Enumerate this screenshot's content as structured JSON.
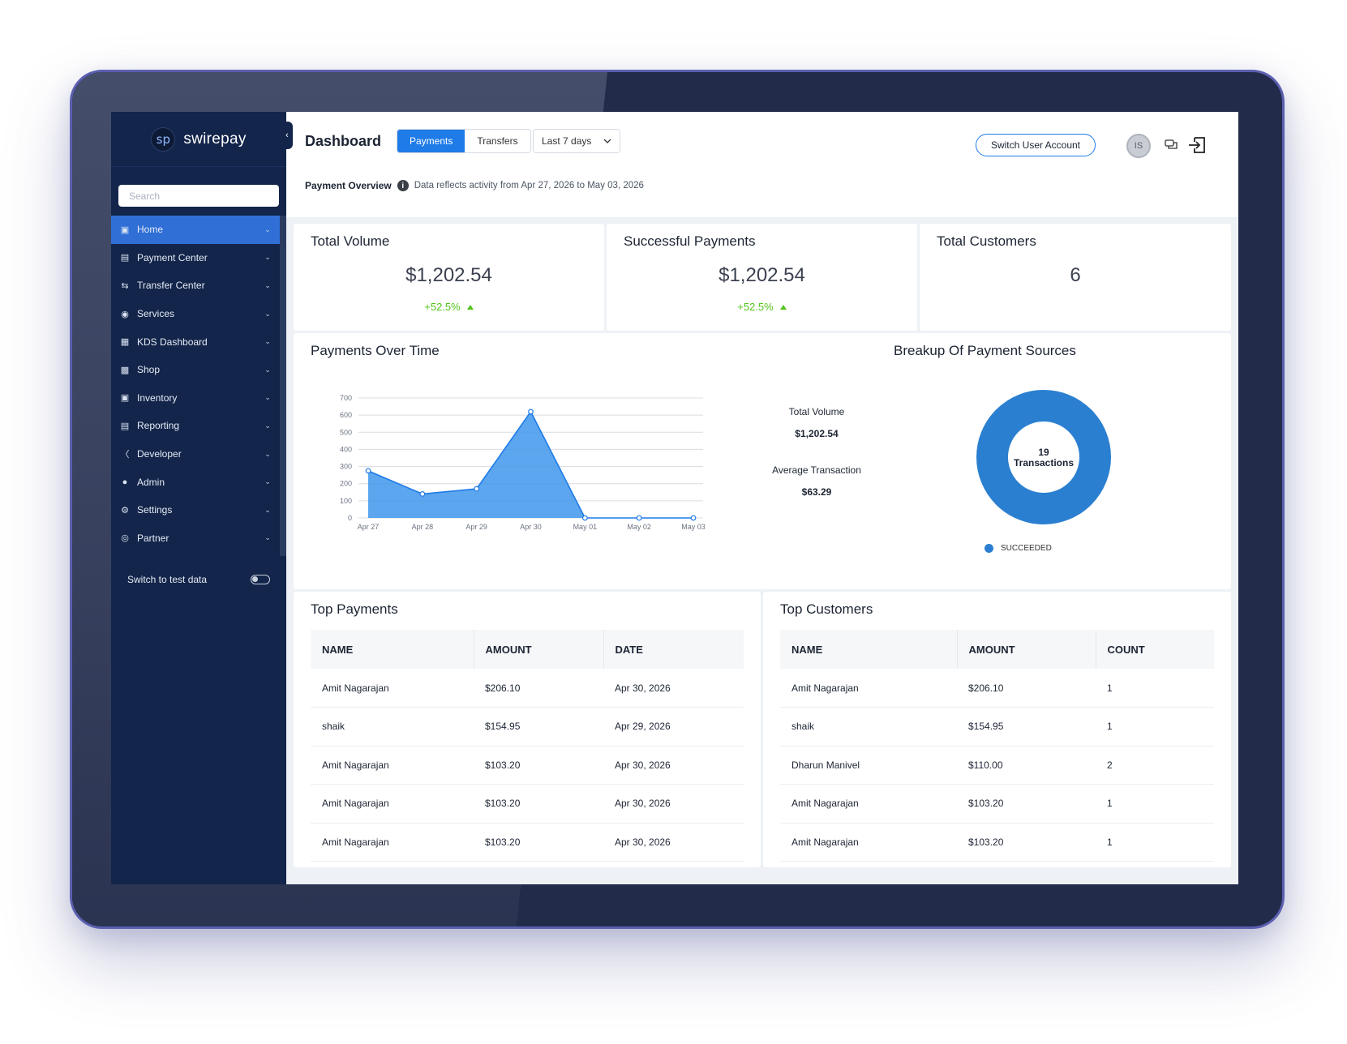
{
  "brand": {
    "logo_mark": "sp",
    "name": "swirepay"
  },
  "sidebar": {
    "search_placeholder": "Search",
    "items": [
      {
        "label": "Home",
        "icon": "home-icon",
        "active": true
      },
      {
        "label": "Payment Center",
        "icon": "payment-icon"
      },
      {
        "label": "Transfer Center",
        "icon": "transfer-icon"
      },
      {
        "label": "Services",
        "icon": "services-icon"
      },
      {
        "label": "KDS Dashboard",
        "icon": "kds-icon"
      },
      {
        "label": "Shop",
        "icon": "shop-icon"
      },
      {
        "label": "Inventory",
        "icon": "inventory-icon"
      },
      {
        "label": "Reporting",
        "icon": "reporting-icon"
      },
      {
        "label": "Developer",
        "icon": "developer-icon"
      },
      {
        "label": "Admin",
        "icon": "admin-icon"
      },
      {
        "label": "Settings",
        "icon": "settings-icon"
      },
      {
        "label": "Partner",
        "icon": "partner-icon"
      }
    ],
    "test_data_label": "Switch to test data"
  },
  "header": {
    "title": "Dashboard",
    "tabs": [
      "Payments",
      "Transfers"
    ],
    "active_tab": "Payments",
    "range": "Last 7 days",
    "switch_user": "Switch User Account",
    "avatar_initials": "IS",
    "overview_label": "Payment Overview",
    "overview_note": "Data reflects activity from Apr 27, 2026 to May 03, 2026"
  },
  "stats": [
    {
      "title": "Total Volume",
      "value": "$1,202.54",
      "change": "+52.5%"
    },
    {
      "title": "Successful Payments",
      "value": "$1,202.54",
      "change": "+52.5%"
    },
    {
      "title": "Total Customers",
      "value": "6",
      "change": ""
    }
  ],
  "payments_chart": {
    "title": "Payments Over Time",
    "metrics": [
      {
        "label": "Total Volume",
        "value": "$1,202.54"
      },
      {
        "label": "Average Transaction",
        "value": "$63.29"
      }
    ]
  },
  "sources_chart": {
    "title": "Breakup Of Payment Sources",
    "center_count": "19",
    "center_label": "Transactions",
    "legend_label": "SUCCEEDED"
  },
  "chart_data": [
    {
      "type": "area",
      "title": "Payments Over Time",
      "categories": [
        "Apr 27",
        "Apr 28",
        "Apr 29",
        "Apr 30",
        "May 01",
        "May 02",
        "May 03"
      ],
      "values": [
        275,
        140,
        170,
        620,
        0,
        0,
        0
      ],
      "ylim": [
        0,
        700
      ],
      "yticks": [
        0,
        100,
        200,
        300,
        400,
        500,
        600,
        700
      ],
      "grid": true,
      "color": "#1e88e5"
    },
    {
      "type": "pie",
      "title": "Breakup Of Payment Sources",
      "labels": [
        "SUCCEEDED"
      ],
      "values": [
        19
      ],
      "colors": [
        "#2a7fd0"
      ]
    }
  ],
  "top_payments": {
    "title": "Top Payments",
    "columns": [
      "NAME",
      "AMOUNT",
      "DATE"
    ],
    "rows": [
      [
        "Amit Nagarajan",
        "$206.10",
        "Apr 30, 2026"
      ],
      [
        "shaik",
        "$154.95",
        "Apr 29, 2026"
      ],
      [
        "Amit Nagarajan",
        "$103.20",
        "Apr 30, 2026"
      ],
      [
        "Amit Nagarajan",
        "$103.20",
        "Apr 30, 2026"
      ],
      [
        "Amit Nagarajan",
        "$103.20",
        "Apr 30, 2026"
      ]
    ]
  },
  "top_customers": {
    "title": "Top Customers",
    "columns": [
      "NAME",
      "AMOUNT",
      "COUNT"
    ],
    "rows": [
      [
        "Amit Nagarajan",
        "$206.10",
        "1"
      ],
      [
        "shaik",
        "$154.95",
        "1"
      ],
      [
        "Dharun Manivel",
        "$110.00",
        "2"
      ],
      [
        "Amit Nagarajan",
        "$103.20",
        "1"
      ],
      [
        "Amit Nagarajan",
        "$103.20",
        "1"
      ]
    ]
  }
}
